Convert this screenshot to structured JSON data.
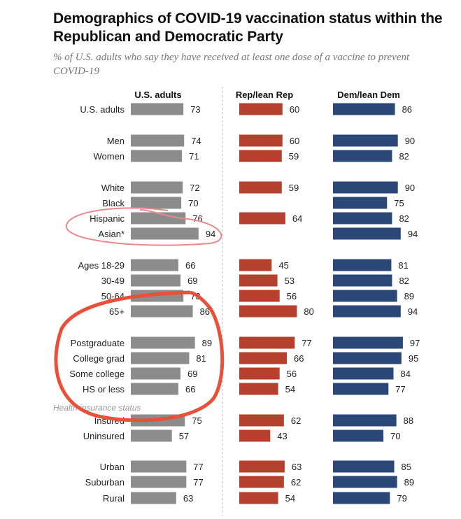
{
  "title": "Demographics of COVID-19 vaccination status within the Republican and Democratic Party",
  "subtitle": "% of U.S. adults who say they have received at least one dose of a vaccine to prevent COVID-19",
  "colors": {
    "us": "#8c8c8c",
    "rep": "#b5402e",
    "dem": "#2b4777",
    "divider": "#bbbbbb",
    "red_annotation": "#e8503a",
    "pink_annotation": "#e88a8a"
  },
  "chart_data": {
    "type": "bar",
    "title": "Demographics of COVID-19 vaccination status within the Republican and Democratic Party",
    "subtitle": "% of U.S. adults who say they have received at least one dose of a vaccine to prevent COVID-19",
    "orientation": "horizontal",
    "xlim": [
      0,
      100
    ],
    "grid": false,
    "panels": [
      "U.S. adults",
      "Rep/lean Rep",
      "Dem/lean Dem"
    ],
    "section_labels": [
      {
        "before_row": "Insured",
        "text": "Health insurance status"
      }
    ],
    "rows": [
      {
        "label": "U.S. adults",
        "group": 0,
        "us": 73,
        "rep": 60,
        "dem": 86
      },
      {
        "label": "Men",
        "group": 1,
        "us": 74,
        "rep": 60,
        "dem": 90
      },
      {
        "label": "Women",
        "group": 1,
        "us": 71,
        "rep": 59,
        "dem": 82
      },
      {
        "label": "White",
        "group": 2,
        "us": 72,
        "rep": 59,
        "dem": 90
      },
      {
        "label": "Black",
        "group": 2,
        "us": 70,
        "rep": null,
        "dem": 75
      },
      {
        "label": "Hispanic",
        "group": 2,
        "us": 76,
        "rep": 64,
        "dem": 82
      },
      {
        "label": "Asian*",
        "group": 2,
        "us": 94,
        "rep": null,
        "dem": 94
      },
      {
        "label": "Ages 18-29",
        "group": 3,
        "us": 66,
        "rep": 45,
        "dem": 81
      },
      {
        "label": "30-49",
        "group": 3,
        "us": 69,
        "rep": 53,
        "dem": 82
      },
      {
        "label": "50-64",
        "group": 3,
        "us": 73,
        "rep": 56,
        "dem": 89
      },
      {
        "label": "65+",
        "group": 3,
        "us": 86,
        "rep": 80,
        "dem": 94
      },
      {
        "label": "Postgraduate",
        "group": 4,
        "us": 89,
        "rep": 77,
        "dem": 97
      },
      {
        "label": "College grad",
        "group": 4,
        "us": 81,
        "rep": 66,
        "dem": 95
      },
      {
        "label": "Some college",
        "group": 4,
        "us": 69,
        "rep": 56,
        "dem": 84
      },
      {
        "label": "HS or less",
        "group": 4,
        "us": 66,
        "rep": 54,
        "dem": 77
      },
      {
        "label": "Insured",
        "group": 5,
        "us": 75,
        "rep": 62,
        "dem": 88
      },
      {
        "label": "Uninsured",
        "group": 5,
        "us": 57,
        "rep": 43,
        "dem": 70
      },
      {
        "label": "Urban",
        "group": 6,
        "us": 77,
        "rep": 63,
        "dem": 85
      },
      {
        "label": "Suburban",
        "group": 6,
        "us": 77,
        "rep": 62,
        "dem": 89
      },
      {
        "label": "Rural",
        "group": 6,
        "us": 63,
        "rep": 54,
        "dem": 79
      }
    ],
    "annotations": [
      {
        "type": "hand-drawn ellipse",
        "color": "pink",
        "around": [
          "Hispanic",
          "Asian*"
        ]
      },
      {
        "type": "hand-drawn circle",
        "color": "red",
        "around": [
          "65+",
          "Postgraduate",
          "College grad",
          "Some college",
          "HS or less"
        ]
      }
    ]
  }
}
